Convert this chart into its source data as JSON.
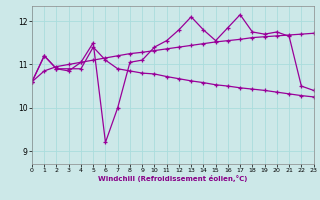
{
  "background_color": "#cce8e8",
  "line_color": "#990099",
  "xlim": [
    0,
    23
  ],
  "ylim": [
    8.7,
    12.35
  ],
  "yticks": [
    9,
    10,
    11,
    12
  ],
  "xticks": [
    0,
    1,
    2,
    3,
    4,
    5,
    6,
    7,
    8,
    9,
    10,
    11,
    12,
    13,
    14,
    15,
    16,
    17,
    18,
    19,
    20,
    21,
    22,
    23
  ],
  "xlabel": "Windchill (Refroidissement éolien,°C)",
  "curve_rising": [
    10.6,
    10.85,
    10.95,
    11.0,
    11.05,
    11.1,
    11.15,
    11.2,
    11.25,
    11.28,
    11.32,
    11.36,
    11.4,
    11.44,
    11.48,
    11.52,
    11.55,
    11.58,
    11.62,
    11.64,
    11.66,
    11.68,
    11.7,
    11.72
  ],
  "curve_volatile": [
    10.6,
    11.2,
    10.9,
    10.85,
    11.05,
    11.5,
    9.2,
    10.0,
    11.05,
    11.1,
    11.4,
    11.55,
    11.8,
    12.1,
    11.8,
    11.55,
    11.85,
    12.15,
    11.75,
    11.7,
    11.75,
    11.65,
    10.5,
    10.4
  ],
  "curve_declining": [
    10.6,
    11.2,
    10.9,
    10.9,
    10.9,
    11.4,
    11.1,
    10.9,
    10.85,
    10.8,
    10.78,
    10.72,
    10.67,
    10.62,
    10.58,
    10.53,
    10.5,
    10.46,
    10.43,
    10.4,
    10.36,
    10.32,
    10.28,
    10.25
  ],
  "grid_color": "#aadddd"
}
